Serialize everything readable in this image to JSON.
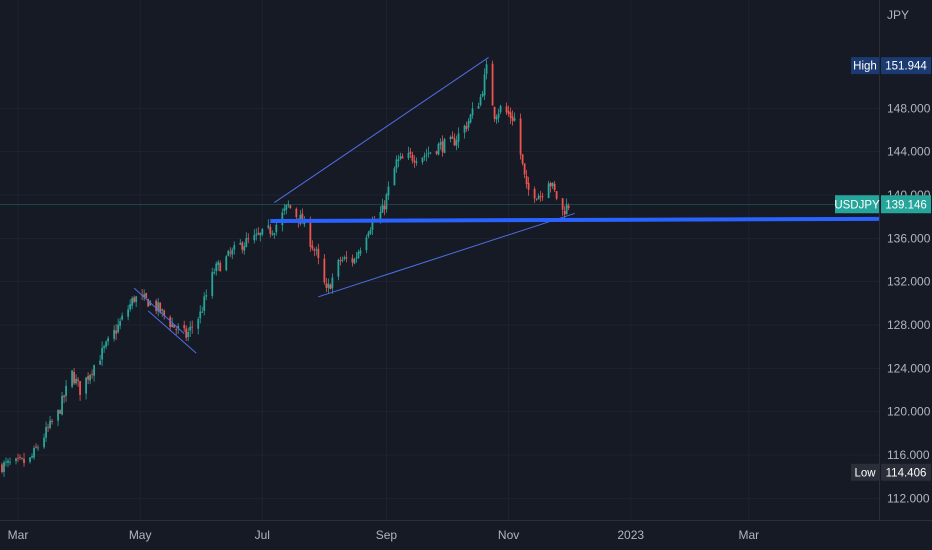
{
  "chart_data": {
    "type": "candlestick",
    "symbol": "USDJPY",
    "currency_label": "JPY",
    "y_axis": {
      "min": 110.0,
      "max": 158.0,
      "ticks": [
        112,
        116,
        120,
        124,
        128,
        132,
        136,
        140,
        144,
        148
      ],
      "tick_labels": [
        "112.000",
        "116.000",
        "120.000",
        "124.000",
        "128.000",
        "132.000",
        "136.000",
        "140.000",
        "144.000",
        "148.000"
      ]
    },
    "x_axis": {
      "start": "2022-02-20",
      "end": "2023-05-05",
      "ticks": [
        "2022-03-01",
        "2022-05-01",
        "2022-07-01",
        "2022-09-01",
        "2022-11-01",
        "2023-01-01",
        "2023-03-01"
      ],
      "tick_labels": [
        "Mar",
        "May",
        "Jul",
        "Sep",
        "Nov",
        "2023",
        "Mar"
      ]
    },
    "last_price": {
      "label": "USDJPY",
      "value": 139.146,
      "text": "139.146",
      "color": "#26a69a"
    },
    "high_marker": {
      "label": "High",
      "value": 151.944,
      "text": "151.944"
    },
    "low_marker": {
      "label": "Low",
      "value": 114.406,
      "text": "114.406"
    },
    "price_path": [
      [
        "2022-02-20",
        115.0
      ],
      [
        "2022-03-01",
        115.2
      ],
      [
        "2022-03-07",
        115.5
      ],
      [
        "2022-03-14",
        117.8
      ],
      [
        "2022-03-21",
        119.8
      ],
      [
        "2022-03-28",
        123.5
      ],
      [
        "2022-04-01",
        122.0
      ],
      [
        "2022-04-07",
        124.0
      ],
      [
        "2022-04-14",
        126.0
      ],
      [
        "2022-04-21",
        128.2
      ],
      [
        "2022-04-28",
        130.5
      ],
      [
        "2022-05-05",
        130.2
      ],
      [
        "2022-05-10",
        129.5
      ],
      [
        "2022-05-17",
        128.0
      ],
      [
        "2022-05-24",
        127.0
      ],
      [
        "2022-05-31",
        129.0
      ],
      [
        "2022-06-07",
        133.0
      ],
      [
        "2022-06-14",
        134.3
      ],
      [
        "2022-06-21",
        135.5
      ],
      [
        "2022-06-28",
        136.0
      ],
      [
        "2022-07-07",
        137.0
      ],
      [
        "2022-07-14",
        139.0
      ],
      [
        "2022-07-21",
        137.5
      ],
      [
        "2022-07-28",
        134.5
      ],
      [
        "2022-08-02",
        131.0
      ],
      [
        "2022-08-09",
        134.0
      ],
      [
        "2022-08-16",
        134.0
      ],
      [
        "2022-08-23",
        137.0
      ],
      [
        "2022-08-30",
        138.5
      ],
      [
        "2022-09-06",
        143.0
      ],
      [
        "2022-09-13",
        143.5
      ],
      [
        "2022-09-20",
        143.7
      ],
      [
        "2022-09-27",
        144.5
      ],
      [
        "2022-10-04",
        144.8
      ],
      [
        "2022-10-11",
        146.5
      ],
      [
        "2022-10-18",
        149.0
      ],
      [
        "2022-10-21",
        151.6
      ],
      [
        "2022-10-25",
        147.5
      ],
      [
        "2022-10-28",
        148.0
      ],
      [
        "2022-11-04",
        147.0
      ],
      [
        "2022-11-10",
        140.5
      ],
      [
        "2022-11-17",
        140.0
      ],
      [
        "2022-11-21",
        141.5
      ],
      [
        "2022-11-28",
        138.5
      ],
      [
        "2022-12-01",
        139.1
      ]
    ],
    "drawings": [
      {
        "kind": "trendline",
        "from": [
          "2022-07-07",
          139.3
        ],
        "to": [
          "2022-10-22",
          152.7
        ],
        "color": "#4d6fe8"
      },
      {
        "kind": "trendline",
        "from": [
          "2022-07-29",
          130.6
        ],
        "to": [
          "2022-12-04",
          138.3
        ],
        "color": "#4d6fe8"
      },
      {
        "kind": "horizontal",
        "from": [
          "2022-07-05",
          137.6
        ],
        "to": [
          "2023-05-05",
          137.8
        ],
        "color": "#2962ff"
      },
      {
        "kind": "trendline",
        "from": [
          "2022-04-28",
          131.4
        ],
        "to": [
          "2022-05-23",
          127.2
        ],
        "color": "#4d6fe8"
      },
      {
        "kind": "trendline",
        "from": [
          "2022-05-05",
          129.3
        ],
        "to": [
          "2022-05-29",
          125.4
        ],
        "color": "#4d6fe8"
      }
    ],
    "colors": {
      "background": "#161a25",
      "up": "#26a69a",
      "down": "#ef5350",
      "grid": "#1f2331",
      "axis_text": "#b2b5be"
    },
    "grid": true
  }
}
